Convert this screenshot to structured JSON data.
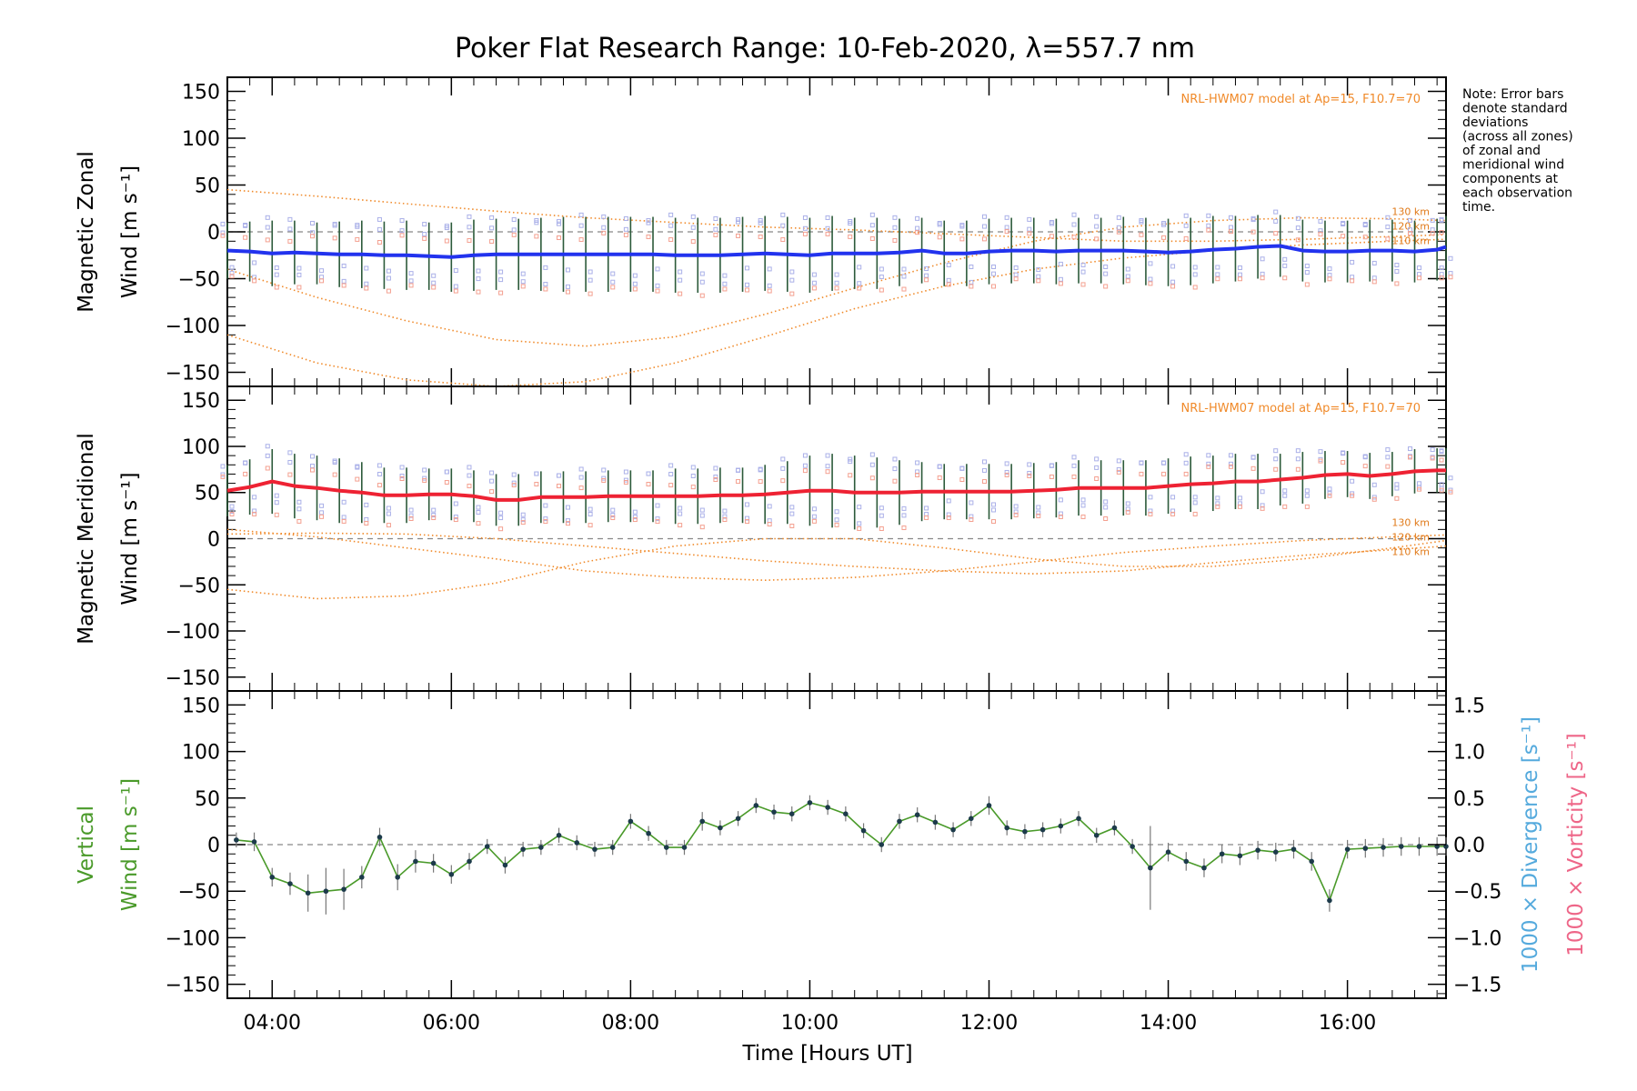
{
  "title": "Poker Flat Research Range: 10-Feb-2020, λ=557.7 nm",
  "note_lines": [
    "Note: Error bars",
    "denote standard",
    "deviations",
    "(across all zones)",
    "of zonal and",
    "meridional wind",
    "components at",
    "each observation",
    "time."
  ],
  "colors": {
    "zonal_mean": "#2233ee",
    "meridional_mean": "#ee2233",
    "vertical": "#4a9a2a",
    "model": "#f08a2a",
    "zone_points": "#aab0e8",
    "zone_points_warm": "#f4a090",
    "divergence_label": "#55aadd",
    "vorticity_label": "#ee6688"
  },
  "chart_data": [
    {
      "type": "line",
      "panel": "zonal",
      "ylabel_line1": "Magnetic Zonal",
      "ylabel_line2": "Wind [m s⁻¹]",
      "ylim": [
        -165,
        165
      ],
      "yticks": [
        150,
        100,
        50,
        0,
        -50,
        -100,
        -150
      ],
      "model_label": "NRL-HWM07 model at Ap=15, F10.7=70",
      "altitude_labels": [
        "130 km",
        "120 km",
        "110 km"
      ],
      "mean_series": {
        "name": "",
        "x": [
          3.5,
          3.75,
          4.0,
          4.25,
          4.5,
          4.75,
          5.0,
          5.25,
          5.5,
          5.75,
          6.0,
          6.25,
          6.5,
          6.75,
          7.0,
          7.25,
          7.5,
          7.75,
          8.0,
          8.25,
          8.5,
          8.75,
          9.0,
          9.25,
          9.5,
          9.75,
          10.0,
          10.25,
          10.5,
          10.75,
          11.0,
          11.25,
          11.5,
          11.75,
          12.0,
          12.25,
          12.5,
          12.75,
          13.0,
          13.25,
          13.5,
          13.75,
          14.0,
          14.25,
          14.5,
          14.75,
          15.0,
          15.25,
          15.5,
          15.75,
          16.0,
          16.25,
          16.5,
          16.75,
          17.0,
          17.1
        ],
        "y": [
          -20,
          -21,
          -23,
          -22,
          -23,
          -24,
          -24,
          -25,
          -25,
          -26,
          -27,
          -25,
          -24,
          -24,
          -24,
          -24,
          -24,
          -24,
          -24,
          -24,
          -25,
          -25,
          -25,
          -24,
          -23,
          -24,
          -25,
          -23,
          -23,
          -23,
          -22,
          -20,
          -23,
          -23,
          -21,
          -20,
          -20,
          -21,
          -20,
          -20,
          -20,
          -21,
          -22,
          -21,
          -19,
          -18,
          -16,
          -15,
          -20,
          -21,
          -21,
          -20,
          -20,
          -21,
          -19,
          -16
        ],
        "err": [
          30,
          32,
          35,
          34,
          33,
          35,
          36,
          36,
          37,
          36,
          37,
          38,
          38,
          38,
          39,
          40,
          40,
          40,
          40,
          40,
          40,
          40,
          40,
          40,
          40,
          40,
          40,
          40,
          38,
          38,
          36,
          35,
          35,
          35,
          35,
          35,
          35,
          35,
          35,
          35,
          36,
          36,
          36,
          36,
          36,
          35,
          34,
          33,
          33,
          33,
          33,
          33,
          33,
          33,
          33,
          33
        ]
      },
      "model_curves": [
        {
          "name": "130 km",
          "x": [
            3.5,
            4.5,
            5.5,
            6.5,
            7.5,
            8.5,
            9.5,
            10.5,
            11.5,
            12.5,
            13.5,
            14.5,
            15.5,
            16.5,
            17.1
          ],
          "y": [
            -40,
            -70,
            -95,
            -115,
            -122,
            -112,
            -88,
            -60,
            -33,
            -10,
            5,
            12,
            15,
            14,
            12
          ]
        },
        {
          "name": "120 km",
          "x": [
            3.5,
            4.5,
            5.5,
            6.5,
            7.5,
            8.5,
            9.5,
            10.5,
            11.5,
            12.5,
            13.5,
            14.5,
            15.5,
            16.5,
            17.1
          ],
          "y": [
            -110,
            -140,
            -158,
            -165,
            -160,
            -140,
            -112,
            -82,
            -58,
            -40,
            -28,
            -20,
            -14,
            -10,
            -8
          ]
        },
        {
          "name": "110 km",
          "x": [
            3.5,
            4.5,
            5.5,
            6.5,
            7.5,
            8.5,
            9.5,
            10.5,
            11.5,
            12.5,
            13.5,
            14.5,
            15.5,
            16.5,
            17.1
          ],
          "y": [
            45,
            38,
            30,
            22,
            15,
            10,
            5,
            2,
            -2,
            -6,
            -10,
            -10,
            -8,
            -5,
            -3
          ]
        }
      ]
    },
    {
      "type": "line",
      "panel": "meridional",
      "ylabel_line1": "Magnetic Meridional",
      "ylabel_line2": "Wind [m s⁻¹]",
      "ylim": [
        -165,
        165
      ],
      "yticks": [
        150,
        100,
        50,
        0,
        -50,
        -100,
        -150
      ],
      "model_label": "NRL-HWM07 model at Ap=15, F10.7=70",
      "altitude_labels": [
        "130 km",
        "120 km",
        "110 km"
      ],
      "mean_series": {
        "name": "",
        "x": [
          3.5,
          3.75,
          4.0,
          4.25,
          4.5,
          4.75,
          5.0,
          5.25,
          5.5,
          5.75,
          6.0,
          6.25,
          6.5,
          6.75,
          7.0,
          7.25,
          7.5,
          7.75,
          8.0,
          8.25,
          8.5,
          8.75,
          9.0,
          9.25,
          9.5,
          9.75,
          10.0,
          10.25,
          10.5,
          10.75,
          11.0,
          11.25,
          11.5,
          11.75,
          12.0,
          12.25,
          12.5,
          12.75,
          13.0,
          13.25,
          13.5,
          13.75,
          14.0,
          14.25,
          14.5,
          14.75,
          15.0,
          15.25,
          15.5,
          15.75,
          16.0,
          16.25,
          16.5,
          16.75,
          17.0,
          17.1
        ],
        "y": [
          52,
          56,
          62,
          57,
          55,
          52,
          50,
          47,
          47,
          48,
          48,
          46,
          42,
          42,
          45,
          45,
          45,
          46,
          46,
          46,
          46,
          46,
          47,
          47,
          48,
          50,
          52,
          52,
          50,
          50,
          50,
          51,
          51,
          51,
          51,
          51,
          52,
          53,
          55,
          55,
          55,
          55,
          57,
          59,
          60,
          62,
          62,
          64,
          66,
          69,
          70,
          68,
          70,
          73,
          74,
          74
        ],
        "err": [
          28,
          30,
          35,
          35,
          35,
          35,
          33,
          30,
          30,
          28,
          28,
          28,
          28,
          28,
          28,
          28,
          28,
          28,
          28,
          28,
          30,
          30,
          30,
          30,
          32,
          34,
          38,
          40,
          40,
          38,
          35,
          32,
          30,
          30,
          30,
          30,
          30,
          30,
          30,
          30,
          30,
          30,
          30,
          30,
          30,
          30,
          30,
          28,
          28,
          26,
          25,
          25,
          24,
          24,
          24,
          24
        ]
      },
      "model_curves": [
        {
          "name": "130 km",
          "x": [
            3.5,
            4.5,
            5.5,
            6.5,
            7.5,
            8.5,
            9.5,
            10.5,
            11.5,
            12.5,
            13.5,
            14.5,
            15.5,
            16.5,
            17.1
          ],
          "y": [
            -55,
            -65,
            -62,
            -48,
            -25,
            -8,
            0,
            0,
            -10,
            -22,
            -30,
            -30,
            -22,
            -10,
            -2
          ]
        },
        {
          "name": "120 km",
          "x": [
            3.5,
            4.5,
            5.5,
            6.5,
            7.5,
            8.5,
            9.5,
            10.5,
            11.5,
            12.5,
            13.5,
            14.5,
            15.5,
            16.5,
            17.1
          ],
          "y": [
            10,
            2,
            -10,
            -22,
            -35,
            -42,
            -45,
            -42,
            -35,
            -25,
            -15,
            -8,
            -2,
            2,
            4
          ]
        },
        {
          "name": "110 km",
          "x": [
            3.5,
            4.5,
            5.5,
            6.5,
            7.5,
            8.5,
            9.5,
            10.5,
            11.5,
            12.5,
            13.5,
            14.5,
            15.5,
            16.5,
            17.1
          ],
          "y": [
            5,
            6,
            5,
            0,
            -8,
            -16,
            -24,
            -30,
            -35,
            -38,
            -35,
            -26,
            -18,
            -12,
            -8
          ]
        }
      ]
    },
    {
      "type": "line",
      "panel": "vertical",
      "ylabel_line1": "Vertical",
      "ylabel_line2": "Wind [m s⁻¹]",
      "ylim": [
        -165,
        165
      ],
      "yticks": [
        150,
        100,
        50,
        0,
        -50,
        -100,
        -150
      ],
      "right_axis": {
        "label_divergence": "1000 × Divergence [s⁻¹]",
        "label_vorticity": "1000 × Vorticity [s⁻¹]",
        "ylim": [
          -1.65,
          1.65
        ],
        "ticks": [
          1.5,
          1.0,
          0.5,
          0.0,
          -0.5,
          -1.0,
          -1.5
        ],
        "tick_labels": [
          "1.5",
          "1.0",
          "0.5",
          "0.0",
          "−0.5",
          "−1.0",
          "−1.5"
        ]
      },
      "series": [
        {
          "name": "",
          "x": [
            3.6,
            3.8,
            4.0,
            4.2,
            4.4,
            4.6,
            4.8,
            5.0,
            5.2,
            5.4,
            5.6,
            5.8,
            6.0,
            6.2,
            6.4,
            6.6,
            6.8,
            7.0,
            7.2,
            7.4,
            7.6,
            7.8,
            8.0,
            8.2,
            8.4,
            8.6,
            8.8,
            9.0,
            9.2,
            9.4,
            9.6,
            9.8,
            10.0,
            10.2,
            10.4,
            10.6,
            10.8,
            11.0,
            11.2,
            11.4,
            11.6,
            11.8,
            12.0,
            12.2,
            12.4,
            12.6,
            12.8,
            13.0,
            13.2,
            13.4,
            13.6,
            13.8,
            14.0,
            14.2,
            14.4,
            14.6,
            14.8,
            15.0,
            15.2,
            15.4,
            15.6,
            15.8,
            16.0,
            16.2,
            16.4,
            16.6,
            16.8,
            17.0,
            17.1
          ],
          "y": [
            5,
            3,
            -35,
            -42,
            -52,
            -50,
            -48,
            -35,
            8,
            -35,
            -18,
            -20,
            -32,
            -18,
            -2,
            -22,
            -5,
            -3,
            10,
            2,
            -5,
            -3,
            25,
            12,
            -3,
            -3,
            25,
            18,
            28,
            42,
            35,
            33,
            45,
            40,
            33,
            15,
            0,
            25,
            32,
            24,
            16,
            28,
            42,
            18,
            14,
            16,
            20,
            28,
            10,
            18,
            -2,
            -25,
            -8,
            -18,
            -25,
            -10,
            -12,
            -6,
            -8,
            -5,
            -18,
            -60,
            -5,
            -4,
            -3,
            -2,
            -2,
            -2,
            -2
          ],
          "err": [
            8,
            10,
            10,
            12,
            20,
            25,
            22,
            12,
            10,
            14,
            12,
            10,
            10,
            9,
            8,
            9,
            8,
            8,
            8,
            8,
            8,
            8,
            8,
            8,
            8,
            8,
            10,
            8,
            8,
            8,
            8,
            8,
            8,
            8,
            8,
            8,
            8,
            8,
            8,
            8,
            8,
            8,
            10,
            8,
            8,
            8,
            8,
            8,
            8,
            8,
            8,
            45,
            10,
            10,
            10,
            10,
            10,
            10,
            10,
            10,
            10,
            12,
            10,
            10,
            10,
            10,
            10,
            10,
            10
          ]
        }
      ]
    }
  ],
  "xaxis": {
    "label": "Time [Hours UT]",
    "xlim": [
      3.5,
      17.1
    ],
    "major_ticks": [
      4,
      6,
      8,
      10,
      12,
      14,
      16
    ],
    "tick_labels": [
      "04:00",
      "06:00",
      "08:00",
      "10:00",
      "12:00",
      "14:00",
      "16:00"
    ]
  }
}
